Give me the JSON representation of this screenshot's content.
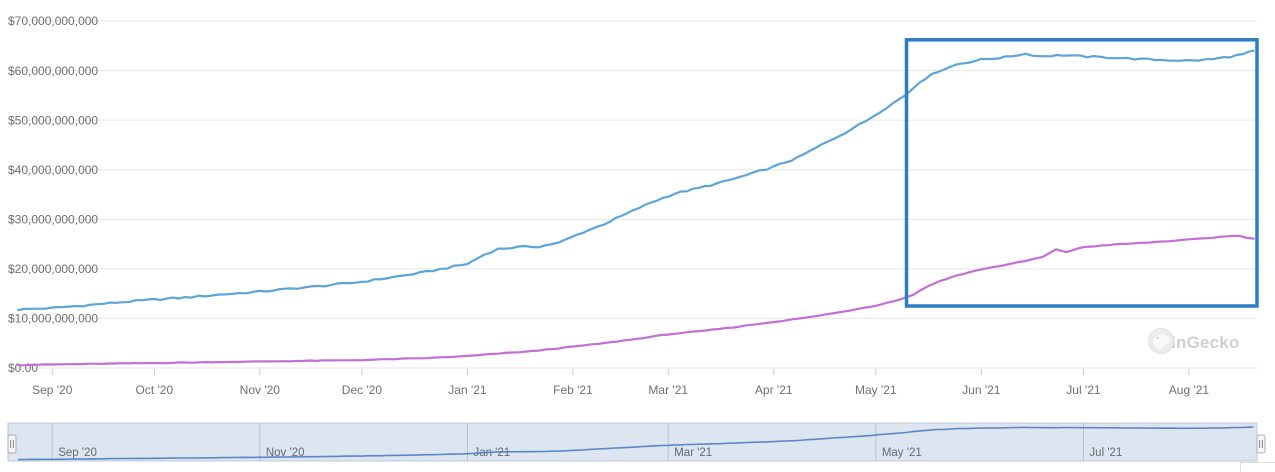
{
  "watermark": {
    "label": "CoinGecko"
  },
  "chart_data": {
    "type": "line",
    "title": "",
    "xlabel": "",
    "ylabel": "",
    "unit": "USD",
    "grid": true,
    "legend": "none",
    "ylim_usd_billions": [
      0,
      70
    ],
    "x_range": [
      "2020-08-19",
      "2021-08-21"
    ],
    "y_axis": [
      {
        "value_usd_billions": 0,
        "label": "$0.00"
      },
      {
        "value_usd_billions": 10,
        "label": "$10,000,000,000"
      },
      {
        "value_usd_billions": 20,
        "label": "$20,000,000,000"
      },
      {
        "value_usd_billions": 30,
        "label": "$30,000,000,000"
      },
      {
        "value_usd_billions": 40,
        "label": "$40,000,000,000"
      },
      {
        "value_usd_billions": 50,
        "label": "$50,000,000,000"
      },
      {
        "value_usd_billions": 60,
        "label": "$60,000,000,000"
      },
      {
        "value_usd_billions": 70,
        "label": "$70,000,000,000"
      }
    ],
    "x_axis_months": [
      {
        "date": "2020-09-01",
        "label": "Sep '20"
      },
      {
        "date": "2020-10-01",
        "label": "Oct '20"
      },
      {
        "date": "2020-11-01",
        "label": "Nov '20"
      },
      {
        "date": "2020-12-01",
        "label": "Dec '20"
      },
      {
        "date": "2021-01-01",
        "label": "Jan '21"
      },
      {
        "date": "2021-02-01",
        "label": "Feb '21"
      },
      {
        "date": "2021-03-01",
        "label": "Mar '21"
      },
      {
        "date": "2021-04-01",
        "label": "Apr '21"
      },
      {
        "date": "2021-05-01",
        "label": "May '21"
      },
      {
        "date": "2021-06-01",
        "label": "Jun '21"
      },
      {
        "date": "2021-07-01",
        "label": "Jul '21"
      },
      {
        "date": "2021-08-01",
        "label": "Aug '21"
      }
    ],
    "series": [
      {
        "id": "blue",
        "color": "#5da4d9",
        "points_usd_billions": [
          [
            "2020-08-22",
            11.8
          ],
          [
            "2020-09-01",
            12.1
          ],
          [
            "2020-09-10",
            12.6
          ],
          [
            "2020-09-20",
            13.2
          ],
          [
            "2020-10-01",
            13.8
          ],
          [
            "2020-10-10",
            14.2
          ],
          [
            "2020-10-20",
            14.8
          ],
          [
            "2020-11-01",
            15.4
          ],
          [
            "2020-11-10",
            16.0
          ],
          [
            "2020-11-20",
            16.6
          ],
          [
            "2020-12-01",
            17.4
          ],
          [
            "2020-12-10",
            18.3
          ],
          [
            "2020-12-20",
            19.4
          ],
          [
            "2021-01-01",
            21.0
          ],
          [
            "2021-01-06",
            22.9
          ],
          [
            "2021-01-10",
            24.0
          ],
          [
            "2021-01-16",
            24.4
          ],
          [
            "2021-01-22",
            24.5
          ],
          [
            "2021-01-28",
            25.3
          ],
          [
            "2021-02-04",
            27.4
          ],
          [
            "2021-02-10",
            29.0
          ],
          [
            "2021-02-17",
            31.2
          ],
          [
            "2021-02-24",
            33.4
          ],
          [
            "2021-03-03",
            35.2
          ],
          [
            "2021-03-10",
            36.3
          ],
          [
            "2021-03-17",
            37.5
          ],
          [
            "2021-03-24",
            38.9
          ],
          [
            "2021-04-01",
            40.6
          ],
          [
            "2021-04-08",
            42.4
          ],
          [
            "2021-04-15",
            45.0
          ],
          [
            "2021-04-22",
            47.5
          ],
          [
            "2021-04-28",
            49.8
          ],
          [
            "2021-05-04",
            52.5
          ],
          [
            "2021-05-10",
            55.2
          ],
          [
            "2021-05-14",
            57.8
          ],
          [
            "2021-05-19",
            59.8
          ],
          [
            "2021-05-25",
            61.3
          ],
          [
            "2021-06-01",
            62.2
          ],
          [
            "2021-06-08",
            62.7
          ],
          [
            "2021-06-14",
            63.4
          ],
          [
            "2021-06-18",
            62.9
          ],
          [
            "2021-06-25",
            63.1
          ],
          [
            "2021-07-02",
            62.8
          ],
          [
            "2021-07-10",
            62.6
          ],
          [
            "2021-07-18",
            62.3
          ],
          [
            "2021-07-26",
            62.1
          ],
          [
            "2021-08-02",
            62.0
          ],
          [
            "2021-08-08",
            62.3
          ],
          [
            "2021-08-13",
            62.8
          ],
          [
            "2021-08-17",
            63.3
          ],
          [
            "2021-08-20",
            64.0
          ]
        ]
      },
      {
        "id": "purple",
        "color": "#c26fd6",
        "points_usd_billions": [
          [
            "2020-08-22",
            0.6
          ],
          [
            "2020-09-10",
            0.8
          ],
          [
            "2020-10-01",
            1.0
          ],
          [
            "2020-10-20",
            1.2
          ],
          [
            "2020-11-10",
            1.4
          ],
          [
            "2020-12-01",
            1.6
          ],
          [
            "2020-12-20",
            2.0
          ],
          [
            "2021-01-01",
            2.4
          ],
          [
            "2021-01-10",
            2.9
          ],
          [
            "2021-01-20",
            3.4
          ],
          [
            "2021-02-01",
            4.3
          ],
          [
            "2021-02-10",
            5.0
          ],
          [
            "2021-02-20",
            5.9
          ],
          [
            "2021-03-01",
            6.8
          ],
          [
            "2021-03-10",
            7.4
          ],
          [
            "2021-03-20",
            8.2
          ],
          [
            "2021-04-01",
            9.3
          ],
          [
            "2021-04-10",
            10.1
          ],
          [
            "2021-04-20",
            11.2
          ],
          [
            "2021-05-01",
            12.6
          ],
          [
            "2021-05-08",
            13.8
          ],
          [
            "2021-05-12",
            14.8
          ],
          [
            "2021-05-16",
            16.4
          ],
          [
            "2021-05-20",
            17.6
          ],
          [
            "2021-05-25",
            18.7
          ],
          [
            "2021-06-01",
            19.9
          ],
          [
            "2021-06-08",
            20.8
          ],
          [
            "2021-06-14",
            21.6
          ],
          [
            "2021-06-19",
            22.4
          ],
          [
            "2021-06-23",
            23.9
          ],
          [
            "2021-06-26",
            23.4
          ],
          [
            "2021-07-01",
            24.4
          ],
          [
            "2021-07-10",
            24.9
          ],
          [
            "2021-07-20",
            25.3
          ],
          [
            "2021-08-01",
            25.9
          ],
          [
            "2021-08-08",
            26.3
          ],
          [
            "2021-08-12",
            26.6
          ],
          [
            "2021-08-16",
            26.7
          ],
          [
            "2021-08-18",
            26.2
          ],
          [
            "2021-08-20",
            26.1
          ]
        ]
      }
    ],
    "highlight_box": {
      "date_from": "2021-05-10",
      "date_to": "2021-08-21",
      "value_from_usd_billions": 12.5,
      "value_to_usd_billions": 66.2,
      "color": "#2b7ec5"
    },
    "navigator": {
      "series_id": "blue",
      "labels": [
        {
          "date": "2020-09-01",
          "label": "Sep '20"
        },
        {
          "date": "2020-11-01",
          "label": "Nov '20"
        },
        {
          "date": "2021-01-01",
          "label": "Jan '21"
        },
        {
          "date": "2021-03-01",
          "label": "Mar '21"
        },
        {
          "date": "2021-05-01",
          "label": "May '21"
        },
        {
          "date": "2021-07-01",
          "label": "Jul '21"
        }
      ]
    },
    "colors": {
      "gridline": "#e6e6e6",
      "axis_text": "#6f6f6f",
      "tick_mark": "#cdcdcd",
      "navigator_fill": "#dde5f1",
      "navigator_border": "#c0c9d8",
      "navigator_gridline": "#b7bfce",
      "navigator_line": "#5b87c5",
      "navigator_text": "#666a73",
      "handle_fill": "#f6f6f6",
      "handle_border": "#aeaeae",
      "handle_grip": "#888888"
    }
  }
}
